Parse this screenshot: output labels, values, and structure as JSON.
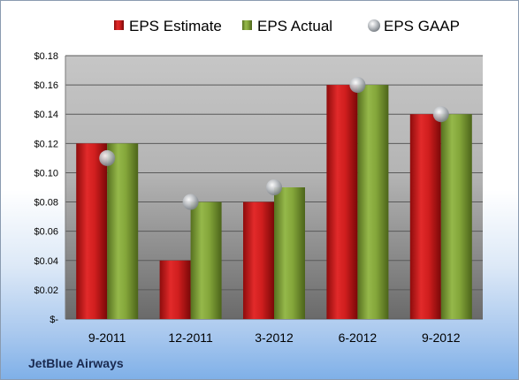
{
  "company": "JetBlue Airways",
  "chart_data": {
    "type": "bar",
    "categories": [
      "9-2011",
      "12-2011",
      "3-2012",
      "6-2012",
      "9-2012"
    ],
    "series": [
      {
        "name": "EPS Estimate",
        "type": "bar",
        "color": "#cc1f1f",
        "values": [
          0.12,
          0.04,
          0.08,
          0.16,
          0.14
        ]
      },
      {
        "name": "EPS Actual",
        "type": "bar",
        "color": "#7a9a32",
        "values": [
          0.12,
          0.08,
          0.09,
          0.16,
          0.14
        ]
      },
      {
        "name": "EPS GAAP",
        "type": "scatter",
        "color": "#b8bcc2",
        "values": [
          0.11,
          0.08,
          0.09,
          0.16,
          0.14
        ]
      }
    ],
    "ylim": [
      0,
      0.18
    ],
    "yticks": [
      0,
      0.02,
      0.04,
      0.06,
      0.08,
      0.1,
      0.12,
      0.14,
      0.16,
      0.18
    ],
    "ytick_labels": [
      "$-",
      "$0.02",
      "$0.04",
      "$0.06",
      "$0.08",
      "$0.10",
      "$0.12",
      "$0.14",
      "$0.16",
      "$0.18"
    ],
    "legend_position": "top",
    "grid": true
  }
}
